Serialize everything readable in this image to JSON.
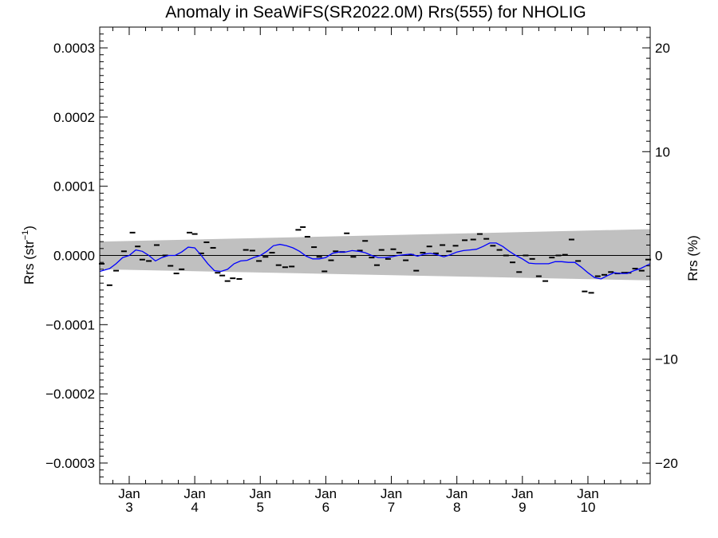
{
  "chart_data": {
    "type": "line",
    "title": "Anomaly in SeaWiFS(SR2022.0M) Rrs(555) for NHOLIG",
    "ylabel_left_base": "Rrs (str",
    "ylabel_left_exp": "−1",
    "ylabel_left_close": ")",
    "ylabel_right": "Rrs (%)",
    "xlim": [
      2.55,
      10.95
    ],
    "ylim": [
      -0.00033,
      0.00033
    ],
    "ylim_right": [
      -22,
      22
    ],
    "grid": false,
    "legend": "none",
    "x_ticks": [
      {
        "value": 3,
        "month": "Jan",
        "day": "3"
      },
      {
        "value": 4,
        "month": "Jan",
        "day": "4"
      },
      {
        "value": 5,
        "month": "Jan",
        "day": "5"
      },
      {
        "value": 6,
        "month": "Jan",
        "day": "6"
      },
      {
        "value": 7,
        "month": "Jan",
        "day": "7"
      },
      {
        "value": 8,
        "month": "Jan",
        "day": "8"
      },
      {
        "value": 9,
        "month": "Jan",
        "day": "9"
      },
      {
        "value": 10,
        "month": "Jan",
        "day": "10"
      }
    ],
    "y_ticks_left": [
      {
        "value": 0.0003,
        "label": "0.0003"
      },
      {
        "value": 0.0002,
        "label": "0.0002"
      },
      {
        "value": 0.0001,
        "label": "0.0001"
      },
      {
        "value": 0.0,
        "label": "0.0000"
      },
      {
        "value": -0.0001,
        "label": "−0.0001"
      },
      {
        "value": -0.0002,
        "label": "−0.0002"
      },
      {
        "value": -0.0003,
        "label": "−0.0003"
      }
    ],
    "y_ticks_right": [
      {
        "value": 20,
        "label": "20"
      },
      {
        "value": 10,
        "label": "10"
      },
      {
        "value": 0,
        "label": "0"
      },
      {
        "value": -10,
        "label": "−10"
      },
      {
        "value": -20,
        "label": "−20"
      }
    ],
    "band": {
      "x": [
        2.55,
        10.95
      ],
      "upper": [
        2e-05,
        3.8e-05
      ],
      "lower": [
        -2e-05,
        -3.6e-05
      ]
    },
    "colors": {
      "smoothed": "#0000ff",
      "band": "#c0c0c0",
      "points": "#000000",
      "zero_line": "#000000"
    },
    "smoothed_series": {
      "x": [
        2.55,
        2.7,
        2.8,
        2.9,
        3.0,
        3.1,
        3.2,
        3.3,
        3.4,
        3.5,
        3.6,
        3.7,
        3.8,
        3.9,
        4.0,
        4.1,
        4.2,
        4.3,
        4.4,
        4.5,
        4.6,
        4.7,
        4.8,
        4.9,
        5.0,
        5.1,
        5.2,
        5.3,
        5.4,
        5.5,
        5.6,
        5.7,
        5.8,
        5.9,
        6.0,
        6.1,
        6.2,
        6.3,
        6.4,
        6.5,
        6.6,
        6.7,
        6.8,
        6.9,
        7.0,
        7.1,
        7.2,
        7.3,
        7.4,
        7.5,
        7.6,
        7.7,
        7.8,
        7.9,
        8.0,
        8.1,
        8.2,
        8.3,
        8.4,
        8.5,
        8.6,
        8.7,
        8.8,
        8.9,
        9.0,
        9.1,
        9.2,
        9.3,
        9.4,
        9.5,
        9.6,
        9.7,
        9.8,
        9.9,
        10.0,
        10.1,
        10.2,
        10.3,
        10.4,
        10.5,
        10.6,
        10.7,
        10.8,
        10.95
      ],
      "y": [
        -2.3e-05,
        -1.9e-05,
        -1.2e-05,
        -3e-06,
        0.0,
        8e-06,
        6e-06,
        0.0,
        -8e-06,
        -3e-06,
        0.0,
        0.0,
        5e-06,
        1.2e-05,
        1.1e-05,
        0.0,
        -1.2e-05,
        -2.2e-05,
        -2.3e-05,
        -2e-05,
        -1.2e-05,
        -8e-06,
        -7e-06,
        -3e-06,
        0.0,
        6e-06,
        1.4e-05,
        1.6e-05,
        1.4e-05,
        1.1e-05,
        6e-06,
        -1e-06,
        -5e-06,
        -5e-06,
        -3e-06,
        3e-06,
        5e-06,
        5e-06,
        7e-06,
        6e-06,
        4e-06,
        0.0,
        -3e-06,
        -3e-06,
        -2e-06,
        0.0,
        1e-06,
        2e-06,
        -1e-06,
        2e-06,
        3e-06,
        1e-06,
        -2e-06,
        1e-06,
        5e-06,
        7e-06,
        8e-06,
        9e-06,
        1.3e-05,
        1.8e-05,
        1.8e-05,
        1.3e-05,
        6e-06,
        0.0,
        -5e-06,
        -1.1e-05,
        -1.2e-05,
        -1.2e-05,
        -1.2e-05,
        -9e-06,
        -9e-06,
        -1e-05,
        -1e-05,
        -1.7e-05,
        -2.5e-05,
        -3.2e-05,
        -3.4e-05,
        -2.9e-05,
        -2.5e-05,
        -2.6e-05,
        -2.6e-05,
        -2.2e-05,
        -1.9e-05,
        -1.2e-05
      ]
    },
    "points": {
      "x": [
        2.58,
        2.7,
        2.8,
        2.92,
        3.05,
        3.13,
        3.2,
        3.3,
        3.42,
        3.55,
        3.63,
        3.72,
        3.8,
        3.92,
        4.0,
        4.1,
        4.18,
        4.28,
        4.35,
        4.42,
        4.5,
        4.58,
        4.68,
        4.78,
        4.88,
        4.98,
        5.08,
        5.18,
        5.28,
        5.38,
        5.48,
        5.58,
        5.65,
        5.72,
        5.82,
        5.9,
        5.98,
        6.08,
        6.15,
        6.25,
        6.32,
        6.42,
        6.52,
        6.6,
        6.7,
        6.78,
        6.85,
        6.95,
        7.03,
        7.12,
        7.22,
        7.3,
        7.38,
        7.48,
        7.58,
        7.68,
        7.78,
        7.88,
        7.98,
        8.12,
        8.25,
        8.35,
        8.45,
        8.55,
        8.65,
        8.75,
        8.85,
        8.95,
        9.05,
        9.15,
        9.25,
        9.35,
        9.45,
        9.55,
        9.65,
        9.75,
        9.85,
        9.95,
        10.05,
        10.15,
        10.25,
        10.35,
        10.45,
        10.55,
        10.62,
        10.72,
        10.82,
        10.92
      ],
      "y": [
        -1.2e-05,
        -4.3e-05,
        -2.2e-05,
        6e-06,
        3.3e-05,
        1.3e-05,
        -6e-06,
        -8e-06,
        1.5e-05,
        0.0,
        -1.5e-05,
        -2.6e-05,
        -2e-05,
        3.3e-05,
        3.1e-05,
        3e-06,
        1.9e-05,
        1.1e-05,
        -2.5e-05,
        -2.9e-05,
        -3.7e-05,
        -3.3e-05,
        -3.4e-05,
        8e-06,
        7e-06,
        -8e-06,
        -2e-06,
        4e-06,
        -1.4e-05,
        -1.7e-05,
        -1.6e-05,
        3.7e-05,
        4.1e-05,
        2.7e-05,
        1.2e-05,
        -2e-06,
        -2.3e-05,
        -7e-06,
        6e-06,
        5e-06,
        3.2e-05,
        -2e-06,
        7e-06,
        2.1e-05,
        -3e-06,
        -1.4e-05,
        8e-06,
        -5e-06,
        9e-06,
        4e-06,
        -7e-06,
        1e-06,
        -2.2e-05,
        4e-06,
        1.3e-05,
        3e-06,
        1.5e-05,
        6e-06,
        1.4e-05,
        2.2e-05,
        2.3e-05,
        3.1e-05,
        2.4e-05,
        1.4e-05,
        8e-06,
        0.0,
        -1e-05,
        -2.4e-05,
        0.0,
        -5e-06,
        -3e-05,
        -3.7e-05,
        -3e-06,
        0.0,
        1e-06,
        2.3e-05,
        -8e-06,
        -5.2e-05,
        -5.4e-05,
        -3e-05,
        -2.8e-05,
        -2.4e-05,
        -2.6e-05,
        -2.5e-05,
        -2.5e-05,
        -1.9e-05,
        -2.2e-05,
        -6e-06
      ]
    }
  }
}
